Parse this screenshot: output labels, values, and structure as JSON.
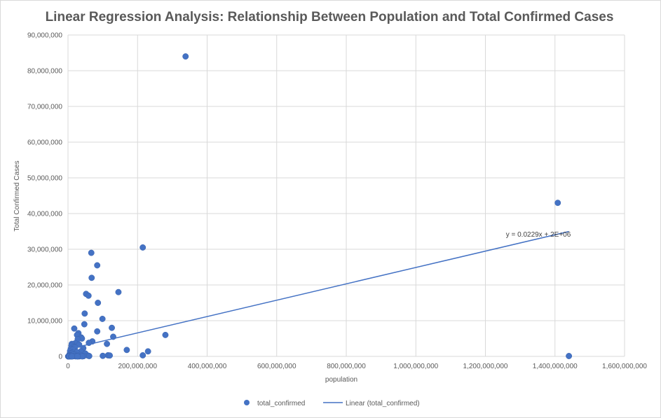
{
  "chart_data": {
    "type": "scatter",
    "title": "Linear Regression Analysis: Relationship Between Population and Total Confirmed Cases",
    "xlabel": "population",
    "ylabel": "Total Confirmed Cases",
    "xlim": [
      0,
      1600000000
    ],
    "ylim": [
      0,
      90000000
    ],
    "xticks": [
      0,
      200000000,
      400000000,
      600000000,
      800000000,
      1000000000,
      1200000000,
      1400000000,
      1600000000
    ],
    "yticks": [
      0,
      10000000,
      20000000,
      30000000,
      40000000,
      50000000,
      60000000,
      70000000,
      80000000,
      90000000
    ],
    "xtick_labels": [
      "0",
      "200,000,000",
      "400,000,000",
      "600,000,000",
      "800,000,000",
      "1,000,000,000",
      "1,200,000,000",
      "1,400,000,000",
      "1,600,000,000"
    ],
    "ytick_labels": [
      "0",
      "10,000,000",
      "20,000,000",
      "30,000,000",
      "40,000,000",
      "50,000,000",
      "60,000,000",
      "70,000,000",
      "80,000,000",
      "90,000,000"
    ],
    "grid": true,
    "legend_position": "bottom",
    "series": [
      {
        "name": "total_confirmed",
        "color": "#4472c4",
        "points": [
          [
            338000000,
            84000000
          ],
          [
            1408000000,
            43000000
          ],
          [
            1440000000,
            100000
          ],
          [
            215000000,
            30500000
          ],
          [
            67000000,
            29000000
          ],
          [
            84000000,
            25500000
          ],
          [
            68000000,
            22000000
          ],
          [
            145000000,
            18000000
          ],
          [
            52000000,
            17500000
          ],
          [
            59000000,
            17000000
          ],
          [
            86000000,
            15000000
          ],
          [
            48000000,
            12000000
          ],
          [
            99000000,
            10500000
          ],
          [
            47000000,
            9000000
          ],
          [
            126000000,
            8000000
          ],
          [
            18000000,
            7800000
          ],
          [
            84000000,
            7000000
          ],
          [
            30000000,
            6500000
          ],
          [
            26000000,
            6000000
          ],
          [
            280000000,
            6000000
          ],
          [
            130000000,
            5500000
          ],
          [
            38000000,
            5300000
          ],
          [
            40000000,
            5000000
          ],
          [
            28000000,
            4800000
          ],
          [
            70000000,
            4200000
          ],
          [
            60000000,
            3800000
          ],
          [
            21000000,
            3700000
          ],
          [
            11000000,
            3500000
          ],
          [
            112000000,
            3500000
          ],
          [
            32000000,
            3300000
          ],
          [
            10000000,
            3000000
          ],
          [
            17000000,
            2700000
          ],
          [
            20000000,
            2500000
          ],
          [
            44000000,
            2300000
          ],
          [
            8000000,
            2100000
          ],
          [
            14000000,
            1900000
          ],
          [
            169000000,
            1800000
          ],
          [
            230000000,
            1400000
          ],
          [
            6000000,
            1500000
          ],
          [
            37000000,
            1400000
          ],
          [
            25000000,
            1200000
          ],
          [
            12000000,
            1100000
          ],
          [
            9000000,
            900000
          ],
          [
            50000000,
            800000
          ],
          [
            5000000,
            700000
          ],
          [
            19000000,
            600000
          ],
          [
            15000000,
            500000
          ],
          [
            34000000,
            400000
          ],
          [
            4000000,
            350000
          ],
          [
            215000000,
            300000
          ],
          [
            115000000,
            300000
          ],
          [
            120000000,
            250000
          ],
          [
            7000000,
            250000
          ],
          [
            58000000,
            200000
          ],
          [
            100000000,
            150000
          ],
          [
            61000000,
            100000
          ],
          [
            3000000,
            120000
          ],
          [
            24000000,
            100000
          ],
          [
            45000000,
            80000
          ],
          [
            16000000,
            60000
          ],
          [
            2000000,
            50000
          ],
          [
            1000000,
            30000
          ],
          [
            13000000,
            40000
          ],
          [
            22000000,
            20000
          ],
          [
            33000000,
            30000
          ],
          [
            29000000,
            15000
          ],
          [
            41000000,
            10000
          ],
          [
            6500000,
            9000
          ],
          [
            500000,
            5000
          ],
          [
            800000,
            3000
          ],
          [
            1500000,
            8000
          ],
          [
            2500000,
            12000
          ],
          [
            3500000,
            10000
          ],
          [
            9500000,
            6000
          ],
          [
            11500000,
            4000
          ],
          [
            27000000,
            7000
          ]
        ]
      },
      {
        "name": "Linear (total_confirmed)",
        "type": "line",
        "color": "#4472c4",
        "slope": 0.0229,
        "intercept": 2000000,
        "x_range": [
          0,
          1440000000
        ]
      }
    ],
    "trendline_label": "y = 0.0229x + 2E+06"
  },
  "legend": {
    "scatter_label": "total_confirmed",
    "line_label": "Linear (total_confirmed)"
  }
}
